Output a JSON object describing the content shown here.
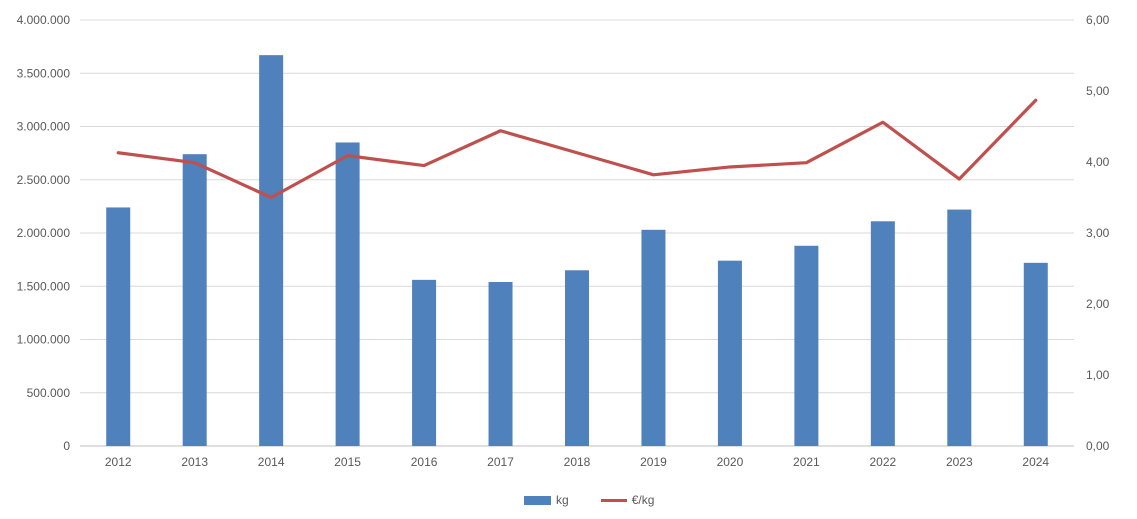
{
  "chart_data": {
    "type": "bar",
    "subtype": "bar-line-combo",
    "title": "",
    "categories": [
      "2012",
      "2013",
      "2014",
      "2015",
      "2016",
      "2017",
      "2018",
      "2019",
      "2020",
      "2021",
      "2022",
      "2023",
      "2024"
    ],
    "series": [
      {
        "name": "kg",
        "type": "bar",
        "axis": "left",
        "color": "#4F81BD",
        "values": [
          2240000,
          2740000,
          3670000,
          2850000,
          1560000,
          1540000,
          1650000,
          2030000,
          1740000,
          1880000,
          2110000,
          2220000,
          1720000
        ]
      },
      {
        "name": "€/kg",
        "type": "line",
        "axis": "right",
        "color": "#C0504D",
        "values": [
          4.13,
          3.99,
          3.5,
          4.09,
          3.95,
          4.44,
          4.13,
          3.82,
          3.93,
          3.99,
          4.56,
          3.76,
          4.87
        ]
      }
    ],
    "left_axis": {
      "min": 0,
      "max": 4000000,
      "tick_step": 500000,
      "tick_labels": [
        "0",
        "500.000",
        "1.000.000",
        "1.500.000",
        "2.000.000",
        "2.500.000",
        "3.000.000",
        "3.500.000",
        "4.000.000"
      ]
    },
    "right_axis": {
      "min": 0,
      "max": 6,
      "tick_step": 1,
      "tick_labels": [
        "0,00",
        "1,00",
        "2,00",
        "3,00",
        "4,00",
        "5,00",
        "6,00"
      ]
    },
    "grid": true,
    "legend_position": "bottom"
  },
  "colors": {
    "bar": "#4F81BD",
    "line": "#C0504D",
    "grid": "#D9D9D9",
    "axis": "#BFBFBF",
    "text": "#595959"
  }
}
